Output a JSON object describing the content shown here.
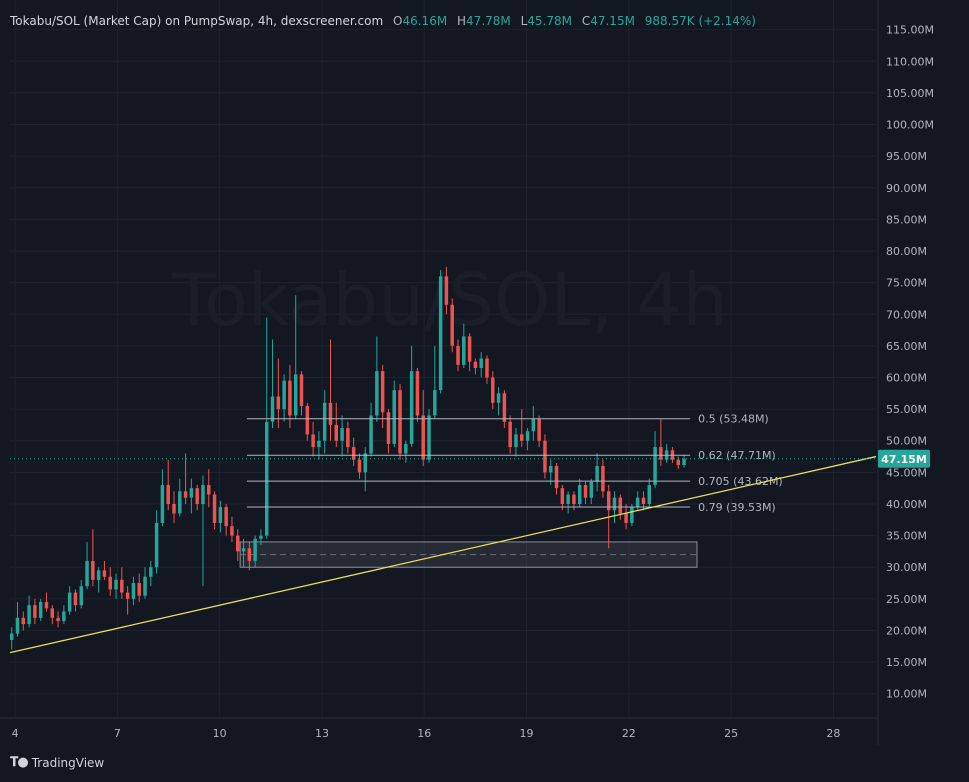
{
  "header": {
    "title": "Tokabu/SOL (Market Cap) on PumpSwap, 4h, dexscreener.com",
    "o_label": "O",
    "o_value": "46.16M",
    "h_label": "H",
    "h_value": "47.78M",
    "l_label": "L",
    "l_value": "45.78M",
    "c_label": "C",
    "c_value": "47.15M",
    "change": "988.57K (+2.14%)"
  },
  "watermark": "Tokabu/SOL, 4h",
  "footer": {
    "brand": "TradingView",
    "icon": "tradingview-logo-icon"
  },
  "chart_data": {
    "type": "candlestick",
    "title": "Tokabu/SOL (Market Cap) on PumpSwap, 4h, dexscreener.com",
    "x_ticks": [
      {
        "value": 4,
        "label": "4"
      },
      {
        "value": 7,
        "label": "7"
      },
      {
        "value": 10,
        "label": "10"
      },
      {
        "value": 13,
        "label": "13"
      },
      {
        "value": 16,
        "label": "16"
      },
      {
        "value": 19,
        "label": "19"
      },
      {
        "value": 22,
        "label": "22"
      },
      {
        "value": 25,
        "label": "25"
      },
      {
        "value": 28,
        "label": "28"
      }
    ],
    "x_range": [
      3.85,
      29.25
    ],
    "y_range": [
      3,
      117
    ],
    "y_ticks": [
      {
        "value": 115,
        "label": "115.00M"
      },
      {
        "value": 110,
        "label": "110.00M"
      },
      {
        "value": 105,
        "label": "105.00M"
      },
      {
        "value": 100,
        "label": "100.00M"
      },
      {
        "value": 95,
        "label": "95.00M"
      },
      {
        "value": 90,
        "label": "90.00M"
      },
      {
        "value": 85,
        "label": "85.00M"
      },
      {
        "value": 80,
        "label": "80.00M"
      },
      {
        "value": 75,
        "label": "75.00M"
      },
      {
        "value": 70,
        "label": "70.00M"
      },
      {
        "value": 65,
        "label": "65.00M"
      },
      {
        "value": 60,
        "label": "60.00M"
      },
      {
        "value": 55,
        "label": "55.00M"
      },
      {
        "value": 50,
        "label": "50.00M"
      },
      {
        "value": 45,
        "label": "45.00M"
      },
      {
        "value": 40,
        "label": "40.00M"
      },
      {
        "value": 35,
        "label": "35.00M"
      },
      {
        "value": 30,
        "label": "30.00M"
      },
      {
        "value": 25,
        "label": "25.00M"
      },
      {
        "value": 20,
        "label": "20.00M"
      },
      {
        "value": 15,
        "label": "15.00M"
      },
      {
        "value": 10,
        "label": "10.00M"
      }
    ],
    "last_price": {
      "value": 47.15,
      "label": "47.15M"
    },
    "colors": {
      "up": "#26a69a",
      "down": "#ef5350",
      "trend": "#e8e05a",
      "fib": "#b2b5be",
      "grid": "#1e222d"
    },
    "fib_levels": [
      {
        "value": 53.48,
        "label": "0.5 (53.48M)"
      },
      {
        "value": 47.71,
        "label": "0.62 (47.71M)"
      },
      {
        "value": 43.62,
        "label": "0.705 (43.62M)"
      },
      {
        "value": 39.53,
        "label": "0.79 (39.53M)"
      }
    ],
    "fib_x_range": [
      10.8,
      23.8
    ],
    "zone": {
      "x0": 10.6,
      "x1": 24.0,
      "y_top": 34.0,
      "y_bottom": 30.0
    },
    "trendline": {
      "x0": 3.85,
      "y0": 16.5,
      "x1": 29.25,
      "y1": 47.5
    },
    "candles": [
      {
        "t": 3.9,
        "o": 18.5,
        "h": 20.5,
        "l": 17.0,
        "c": 19.5
      },
      {
        "t": 4.07,
        "o": 19.5,
        "h": 24.5,
        "l": 19.0,
        "c": 22.0
      },
      {
        "t": 4.24,
        "o": 22.0,
        "h": 23.0,
        "l": 20.0,
        "c": 21.0
      },
      {
        "t": 4.41,
        "o": 21.0,
        "h": 25.5,
        "l": 20.5,
        "c": 24.0
      },
      {
        "t": 4.58,
        "o": 24.0,
        "h": 25.0,
        "l": 21.0,
        "c": 22.0
      },
      {
        "t": 4.75,
        "o": 22.0,
        "h": 25.0,
        "l": 21.5,
        "c": 24.5
      },
      {
        "t": 4.92,
        "o": 24.5,
        "h": 26.0,
        "l": 23.0,
        "c": 23.5
      },
      {
        "t": 5.09,
        "o": 23.5,
        "h": 24.0,
        "l": 21.0,
        "c": 22.0
      },
      {
        "t": 5.26,
        "o": 22.0,
        "h": 23.0,
        "l": 20.5,
        "c": 21.5
      },
      {
        "t": 5.43,
        "o": 21.5,
        "h": 24.0,
        "l": 21.0,
        "c": 23.0
      },
      {
        "t": 5.6,
        "o": 23.0,
        "h": 27.0,
        "l": 22.5,
        "c": 26.0
      },
      {
        "t": 5.77,
        "o": 26.0,
        "h": 26.5,
        "l": 23.0,
        "c": 24.0
      },
      {
        "t": 5.94,
        "o": 24.0,
        "h": 28.0,
        "l": 23.5,
        "c": 27.0
      },
      {
        "t": 6.11,
        "o": 27.0,
        "h": 34.0,
        "l": 26.5,
        "c": 31.0
      },
      {
        "t": 6.28,
        "o": 31.0,
        "h": 36.0,
        "l": 27.0,
        "c": 28.0
      },
      {
        "t": 6.45,
        "o": 28.0,
        "h": 30.0,
        "l": 26.0,
        "c": 29.5
      },
      {
        "t": 6.62,
        "o": 29.5,
        "h": 31.0,
        "l": 28.0,
        "c": 28.5
      },
      {
        "t": 6.79,
        "o": 28.5,
        "h": 30.0,
        "l": 25.5,
        "c": 26.5
      },
      {
        "t": 6.96,
        "o": 26.5,
        "h": 29.0,
        "l": 25.0,
        "c": 28.0
      },
      {
        "t": 7.13,
        "o": 28.0,
        "h": 30.0,
        "l": 25.0,
        "c": 26.0
      },
      {
        "t": 7.3,
        "o": 26.0,
        "h": 27.0,
        "l": 22.5,
        "c": 25.0
      },
      {
        "t": 7.47,
        "o": 25.0,
        "h": 28.5,
        "l": 24.0,
        "c": 27.5
      },
      {
        "t": 7.64,
        "o": 27.5,
        "h": 29.0,
        "l": 24.5,
        "c": 25.5
      },
      {
        "t": 7.81,
        "o": 25.5,
        "h": 30.0,
        "l": 25.0,
        "c": 28.5
      },
      {
        "t": 7.98,
        "o": 28.5,
        "h": 31.0,
        "l": 27.0,
        "c": 30.0
      },
      {
        "t": 8.15,
        "o": 30.0,
        "h": 39.0,
        "l": 29.0,
        "c": 37.0
      },
      {
        "t": 8.32,
        "o": 37.0,
        "h": 45.5,
        "l": 36.5,
        "c": 43.0
      },
      {
        "t": 8.49,
        "o": 43.0,
        "h": 47.0,
        "l": 39.0,
        "c": 40.0
      },
      {
        "t": 8.66,
        "o": 40.0,
        "h": 42.0,
        "l": 37.0,
        "c": 38.5
      },
      {
        "t": 8.83,
        "o": 38.5,
        "h": 44.0,
        "l": 38.0,
        "c": 42.0
      },
      {
        "t": 9.0,
        "o": 42.0,
        "h": 48.0,
        "l": 40.0,
        "c": 41.0
      },
      {
        "t": 9.17,
        "o": 41.0,
        "h": 44.0,
        "l": 38.5,
        "c": 42.5
      },
      {
        "t": 9.34,
        "o": 42.5,
        "h": 43.0,
        "l": 39.0,
        "c": 40.0
      },
      {
        "t": 9.51,
        "o": 40.0,
        "h": 44.5,
        "l": 27.0,
        "c": 43.0
      },
      {
        "t": 9.68,
        "o": 43.0,
        "h": 45.5,
        "l": 39.5,
        "c": 41.5
      },
      {
        "t": 9.85,
        "o": 41.5,
        "h": 42.0,
        "l": 36.0,
        "c": 37.0
      },
      {
        "t": 10.02,
        "o": 37.0,
        "h": 40.5,
        "l": 35.5,
        "c": 39.5
      },
      {
        "t": 10.19,
        "o": 39.5,
        "h": 40.0,
        "l": 35.0,
        "c": 36.5
      },
      {
        "t": 10.36,
        "o": 36.5,
        "h": 38.0,
        "l": 34.0,
        "c": 35.0
      },
      {
        "t": 10.53,
        "o": 35.0,
        "h": 36.0,
        "l": 31.0,
        "c": 32.5
      },
      {
        "t": 10.7,
        "o": 32.5,
        "h": 34.5,
        "l": 30.0,
        "c": 33.0
      },
      {
        "t": 10.87,
        "o": 33.0,
        "h": 34.0,
        "l": 29.5,
        "c": 31.0
      },
      {
        "t": 11.04,
        "o": 31.0,
        "h": 35.0,
        "l": 30.0,
        "c": 34.5
      },
      {
        "t": 11.21,
        "o": 34.5,
        "h": 36.0,
        "l": 33.5,
        "c": 35.0
      },
      {
        "t": 11.38,
        "o": 35.0,
        "h": 69.5,
        "l": 34.5,
        "c": 53.0
      },
      {
        "t": 11.55,
        "o": 53.0,
        "h": 66.0,
        "l": 52.0,
        "c": 57.0
      },
      {
        "t": 11.72,
        "o": 57.0,
        "h": 63.0,
        "l": 52.0,
        "c": 55.0
      },
      {
        "t": 11.89,
        "o": 55.0,
        "h": 60.5,
        "l": 53.0,
        "c": 59.5
      },
      {
        "t": 12.06,
        "o": 59.5,
        "h": 62.0,
        "l": 52.0,
        "c": 54.0
      },
      {
        "t": 12.23,
        "o": 54.0,
        "h": 73.0,
        "l": 53.5,
        "c": 60.5
      },
      {
        "t": 12.4,
        "o": 60.5,
        "h": 61.0,
        "l": 54.0,
        "c": 55.5
      },
      {
        "t": 12.57,
        "o": 55.5,
        "h": 56.0,
        "l": 50.0,
        "c": 51.0
      },
      {
        "t": 12.74,
        "o": 51.0,
        "h": 53.0,
        "l": 47.5,
        "c": 49.0
      },
      {
        "t": 12.91,
        "o": 49.0,
        "h": 51.5,
        "l": 47.0,
        "c": 50.0
      },
      {
        "t": 13.08,
        "o": 50.0,
        "h": 58.0,
        "l": 48.0,
        "c": 56.0
      },
      {
        "t": 13.25,
        "o": 56.0,
        "h": 66.0,
        "l": 50.0,
        "c": 52.5
      },
      {
        "t": 13.42,
        "o": 52.5,
        "h": 56.0,
        "l": 49.0,
        "c": 50.0
      },
      {
        "t": 13.59,
        "o": 50.0,
        "h": 54.0,
        "l": 47.5,
        "c": 52.0
      },
      {
        "t": 13.76,
        "o": 52.0,
        "h": 53.0,
        "l": 48.0,
        "c": 49.0
      },
      {
        "t": 13.93,
        "o": 49.0,
        "h": 50.5,
        "l": 46.0,
        "c": 47.0
      },
      {
        "t": 14.1,
        "o": 47.0,
        "h": 48.0,
        "l": 44.0,
        "c": 45.0
      },
      {
        "t": 14.27,
        "o": 45.0,
        "h": 49.0,
        "l": 42.0,
        "c": 48.0
      },
      {
        "t": 14.44,
        "o": 48.0,
        "h": 56.0,
        "l": 47.5,
        "c": 54.0
      },
      {
        "t": 14.61,
        "o": 54.0,
        "h": 66.5,
        "l": 53.0,
        "c": 61.0
      },
      {
        "t": 14.78,
        "o": 61.0,
        "h": 62.0,
        "l": 52.0,
        "c": 54.5
      },
      {
        "t": 14.95,
        "o": 54.5,
        "h": 55.0,
        "l": 48.0,
        "c": 49.5
      },
      {
        "t": 15.12,
        "o": 49.5,
        "h": 59.5,
        "l": 49.0,
        "c": 58.0
      },
      {
        "t": 15.29,
        "o": 58.0,
        "h": 59.0,
        "l": 47.0,
        "c": 48.0
      },
      {
        "t": 15.46,
        "o": 48.0,
        "h": 50.0,
        "l": 46.5,
        "c": 49.5
      },
      {
        "t": 15.63,
        "o": 49.5,
        "h": 65.0,
        "l": 49.0,
        "c": 61.0
      },
      {
        "t": 15.8,
        "o": 61.0,
        "h": 61.5,
        "l": 53.0,
        "c": 54.0
      },
      {
        "t": 15.97,
        "o": 54.0,
        "h": 58.0,
        "l": 46.0,
        "c": 47.0
      },
      {
        "t": 16.14,
        "o": 47.0,
        "h": 55.0,
        "l": 46.5,
        "c": 54.0
      },
      {
        "t": 16.31,
        "o": 54.0,
        "h": 65.0,
        "l": 53.5,
        "c": 58.0
      },
      {
        "t": 16.48,
        "o": 58.0,
        "h": 77.0,
        "l": 57.5,
        "c": 76.0
      },
      {
        "t": 16.65,
        "o": 76.0,
        "h": 77.5,
        "l": 70.0,
        "c": 71.5
      },
      {
        "t": 16.82,
        "o": 71.5,
        "h": 72.5,
        "l": 64.0,
        "c": 65.0
      },
      {
        "t": 16.99,
        "o": 65.0,
        "h": 66.0,
        "l": 61.0,
        "c": 62.0
      },
      {
        "t": 17.16,
        "o": 62.0,
        "h": 68.5,
        "l": 61.5,
        "c": 66.5
      },
      {
        "t": 17.33,
        "o": 66.5,
        "h": 67.0,
        "l": 61.0,
        "c": 62.5
      },
      {
        "t": 17.5,
        "o": 62.5,
        "h": 63.0,
        "l": 60.5,
        "c": 61.5
      },
      {
        "t": 17.67,
        "o": 61.5,
        "h": 64.0,
        "l": 60.0,
        "c": 63.0
      },
      {
        "t": 17.84,
        "o": 63.0,
        "h": 63.5,
        "l": 59.0,
        "c": 60.0
      },
      {
        "t": 18.01,
        "o": 60.0,
        "h": 61.0,
        "l": 55.0,
        "c": 56.0
      },
      {
        "t": 18.18,
        "o": 56.0,
        "h": 58.5,
        "l": 54.0,
        "c": 57.5
      },
      {
        "t": 18.35,
        "o": 57.5,
        "h": 58.0,
        "l": 52.0,
        "c": 53.0
      },
      {
        "t": 18.52,
        "o": 53.0,
        "h": 54.0,
        "l": 48.0,
        "c": 49.0
      },
      {
        "t": 18.69,
        "o": 49.0,
        "h": 52.0,
        "l": 47.5,
        "c": 51.0
      },
      {
        "t": 18.86,
        "o": 51.0,
        "h": 55.0,
        "l": 49.0,
        "c": 50.0
      },
      {
        "t": 19.03,
        "o": 50.0,
        "h": 52.0,
        "l": 48.5,
        "c": 51.5
      },
      {
        "t": 19.2,
        "o": 51.5,
        "h": 55.5,
        "l": 50.0,
        "c": 53.5
      },
      {
        "t": 19.37,
        "o": 53.5,
        "h": 54.0,
        "l": 49.0,
        "c": 50.0
      },
      {
        "t": 19.54,
        "o": 50.0,
        "h": 51.0,
        "l": 44.0,
        "c": 45.0
      },
      {
        "t": 19.71,
        "o": 45.0,
        "h": 47.0,
        "l": 43.0,
        "c": 46.0
      },
      {
        "t": 19.88,
        "o": 46.0,
        "h": 46.5,
        "l": 41.5,
        "c": 42.5
      },
      {
        "t": 20.05,
        "o": 42.5,
        "h": 43.0,
        "l": 39.0,
        "c": 40.0
      },
      {
        "t": 20.22,
        "o": 40.0,
        "h": 42.0,
        "l": 38.5,
        "c": 41.5
      },
      {
        "t": 20.39,
        "o": 41.5,
        "h": 42.0,
        "l": 39.0,
        "c": 40.0
      },
      {
        "t": 20.56,
        "o": 40.0,
        "h": 44.0,
        "l": 39.5,
        "c": 43.0
      },
      {
        "t": 20.73,
        "o": 43.0,
        "h": 43.5,
        "l": 40.0,
        "c": 41.0
      },
      {
        "t": 20.9,
        "o": 41.0,
        "h": 44.0,
        "l": 40.0,
        "c": 43.5
      },
      {
        "t": 21.07,
        "o": 43.5,
        "h": 48.0,
        "l": 42.0,
        "c": 46.0
      },
      {
        "t": 21.24,
        "o": 46.0,
        "h": 47.0,
        "l": 41.0,
        "c": 42.0
      },
      {
        "t": 21.41,
        "o": 42.0,
        "h": 43.0,
        "l": 33.0,
        "c": 39.0
      },
      {
        "t": 21.58,
        "o": 39.0,
        "h": 42.0,
        "l": 37.0,
        "c": 41.0
      },
      {
        "t": 21.75,
        "o": 41.0,
        "h": 41.5,
        "l": 37.5,
        "c": 38.5
      },
      {
        "t": 21.92,
        "o": 38.5,
        "h": 40.0,
        "l": 36.0,
        "c": 37.0
      },
      {
        "t": 22.09,
        "o": 37.0,
        "h": 40.0,
        "l": 36.5,
        "c": 39.5
      },
      {
        "t": 22.26,
        "o": 39.5,
        "h": 42.0,
        "l": 39.0,
        "c": 41.0
      },
      {
        "t": 22.43,
        "o": 41.0,
        "h": 42.0,
        "l": 39.0,
        "c": 40.0
      },
      {
        "t": 22.6,
        "o": 40.0,
        "h": 44.0,
        "l": 39.5,
        "c": 43.0
      },
      {
        "t": 22.77,
        "o": 43.0,
        "h": 51.5,
        "l": 42.5,
        "c": 49.0
      },
      {
        "t": 22.94,
        "o": 49.0,
        "h": 53.5,
        "l": 46.0,
        "c": 47.0
      },
      {
        "t": 23.11,
        "o": 47.0,
        "h": 49.5,
        "l": 46.5,
        "c": 48.5
      },
      {
        "t": 23.28,
        "o": 48.5,
        "h": 49.0,
        "l": 46.5,
        "c": 47.0
      },
      {
        "t": 23.45,
        "o": 47.0,
        "h": 47.5,
        "l": 45.5,
        "c": 46.16
      },
      {
        "t": 23.62,
        "o": 46.16,
        "h": 47.78,
        "l": 45.78,
        "c": 47.15
      }
    ]
  }
}
